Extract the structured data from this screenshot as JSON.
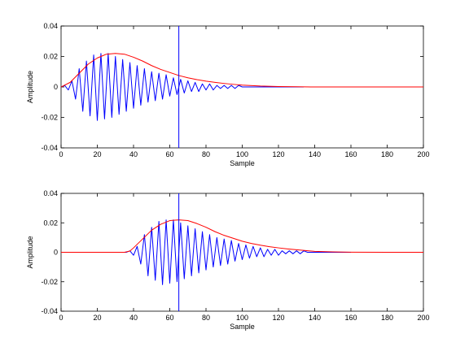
{
  "chart_data": [
    {
      "type": "line",
      "xlabel": "Sample",
      "ylabel": "Amplitude",
      "xlim": [
        0,
        200
      ],
      "ylim": [
        -0.04,
        0.04
      ],
      "xticks": [
        0,
        20,
        40,
        60,
        80,
        100,
        120,
        140,
        160,
        180,
        200
      ],
      "yticks": [
        -0.04,
        -0.02,
        0,
        0.02,
        0.04
      ],
      "xtick_labels": [
        "0",
        "20",
        "40",
        "60",
        "80",
        "100",
        "120",
        "140",
        "160",
        "180",
        "200"
      ],
      "ytick_labels": [
        "-0.04",
        "-0.02",
        "0",
        "0.02",
        "0.04"
      ],
      "grid": false,
      "series": [
        {
          "color": "#0000ff",
          "x": [
            0,
            2,
            4,
            6,
            8,
            10,
            12,
            14,
            16,
            18,
            20,
            22,
            24,
            26,
            28,
            30,
            32,
            34,
            36,
            38,
            40,
            42,
            44,
            46,
            48,
            50,
            52,
            54,
            56,
            58,
            60,
            62,
            64,
            66,
            68,
            70,
            72,
            74,
            76,
            78,
            80,
            82,
            84,
            86,
            88,
            90,
            92,
            94,
            96,
            98,
            100,
            102,
            104,
            106,
            108,
            110,
            112,
            114,
            116,
            118,
            120,
            122,
            124,
            126,
            128,
            130,
            132,
            134
          ],
          "y": [
            0.0,
            0.001,
            -0.002,
            0.004,
            -0.008,
            0.012,
            -0.016,
            0.017,
            -0.019,
            0.021,
            -0.022,
            0.022,
            -0.021,
            0.022,
            -0.02,
            0.02,
            -0.018,
            0.018,
            -0.016,
            0.016,
            -0.014,
            0.014,
            -0.012,
            0.012,
            -0.01,
            0.01,
            -0.009,
            0.009,
            -0.008,
            0.008,
            -0.006,
            0.006,
            -0.005,
            0.005,
            -0.004,
            0.004,
            -0.003,
            0.003,
            -0.003,
            0.002,
            -0.002,
            0.002,
            -0.002,
            0.001,
            -0.001,
            0.001,
            -0.001,
            0.001,
            -0.001,
            0.001,
            0.0,
            0.0,
            0.0,
            0.0,
            0.0,
            0.0,
            0.0,
            0.0,
            0.0,
            0.0,
            0.0,
            0.0,
            0.0,
            0.0,
            0.0,
            0.0,
            0.0,
            0.0
          ]
        },
        {
          "color": "#ff0000",
          "x": [
            0,
            5,
            10,
            15,
            20,
            25,
            30,
            35,
            40,
            45,
            50,
            55,
            60,
            65,
            70,
            75,
            80,
            85,
            90,
            95,
            100,
            110,
            120,
            130,
            140,
            160,
            180,
            200
          ],
          "y": [
            0.0,
            0.003,
            0.009,
            0.015,
            0.019,
            0.0215,
            0.022,
            0.0215,
            0.0195,
            0.017,
            0.014,
            0.0115,
            0.0095,
            0.0075,
            0.006,
            0.0048,
            0.0038,
            0.003,
            0.0023,
            0.0017,
            0.0012,
            0.0006,
            0.0003,
            0.0001,
            0.0,
            0.0,
            0.0,
            0.0
          ]
        }
      ],
      "vline_x": 65,
      "vline_color": "#0000ff"
    },
    {
      "type": "line",
      "xlabel": "Sample",
      "ylabel": "Amplitude",
      "xlim": [
        0,
        200
      ],
      "ylim": [
        -0.04,
        0.04
      ],
      "xticks": [
        0,
        20,
        40,
        60,
        80,
        100,
        120,
        140,
        160,
        180,
        200
      ],
      "yticks": [
        -0.04,
        -0.02,
        0,
        0.02,
        0.04
      ],
      "xtick_labels": [
        "0",
        "20",
        "40",
        "60",
        "80",
        "100",
        "120",
        "140",
        "160",
        "180",
        "200"
      ],
      "ytick_labels": [
        "-0.04",
        "-0.02",
        "0",
        "0.02",
        "0.04"
      ],
      "grid": false,
      "series": [
        {
          "color": "#0000ff",
          "x": [
            34,
            36,
            38,
            40,
            42,
            44,
            46,
            48,
            50,
            52,
            54,
            56,
            58,
            60,
            62,
            64,
            66,
            68,
            70,
            72,
            74,
            76,
            78,
            80,
            82,
            84,
            86,
            88,
            90,
            92,
            94,
            96,
            98,
            100,
            102,
            104,
            106,
            108,
            110,
            112,
            114,
            116,
            118,
            120,
            122,
            124,
            126,
            128,
            130,
            132,
            134,
            136,
            138,
            140,
            142,
            144,
            146,
            148,
            150,
            152,
            154,
            156,
            158,
            160
          ],
          "y": [
            0.0,
            0.0,
            0.001,
            -0.002,
            0.004,
            -0.008,
            0.012,
            -0.016,
            0.017,
            -0.019,
            0.021,
            -0.022,
            0.022,
            -0.021,
            0.022,
            -0.02,
            0.02,
            -0.018,
            0.018,
            -0.016,
            0.016,
            -0.014,
            0.014,
            -0.012,
            0.012,
            -0.01,
            0.01,
            -0.009,
            0.009,
            -0.008,
            0.008,
            -0.006,
            0.006,
            -0.005,
            0.005,
            -0.004,
            0.004,
            -0.003,
            0.003,
            -0.003,
            0.002,
            -0.002,
            0.002,
            -0.002,
            0.001,
            -0.001,
            0.001,
            -0.001,
            0.001,
            -0.001,
            0.001,
            0.0,
            0.0,
            0.0,
            0.0,
            0.0,
            0.0,
            0.0,
            0.0,
            0.0,
            0.0,
            0.0,
            0.0,
            0.0
          ]
        },
        {
          "color": "#ff0000",
          "x": [
            0,
            35,
            38,
            40,
            45,
            50,
            55,
            60,
            65,
            70,
            75,
            80,
            85,
            90,
            95,
            100,
            105,
            110,
            115,
            120,
            125,
            130,
            135,
            140,
            150,
            160,
            180,
            200
          ],
          "y": [
            0.0,
            0.0,
            0.0008,
            0.003,
            0.009,
            0.015,
            0.019,
            0.0215,
            0.022,
            0.0215,
            0.0195,
            0.017,
            0.014,
            0.0115,
            0.0095,
            0.0075,
            0.006,
            0.0048,
            0.0038,
            0.003,
            0.0023,
            0.0017,
            0.0012,
            0.0006,
            0.0003,
            0.0001,
            0.0,
            0.0
          ]
        }
      ],
      "vline_x": 65,
      "vline_color": "#0000ff"
    }
  ]
}
